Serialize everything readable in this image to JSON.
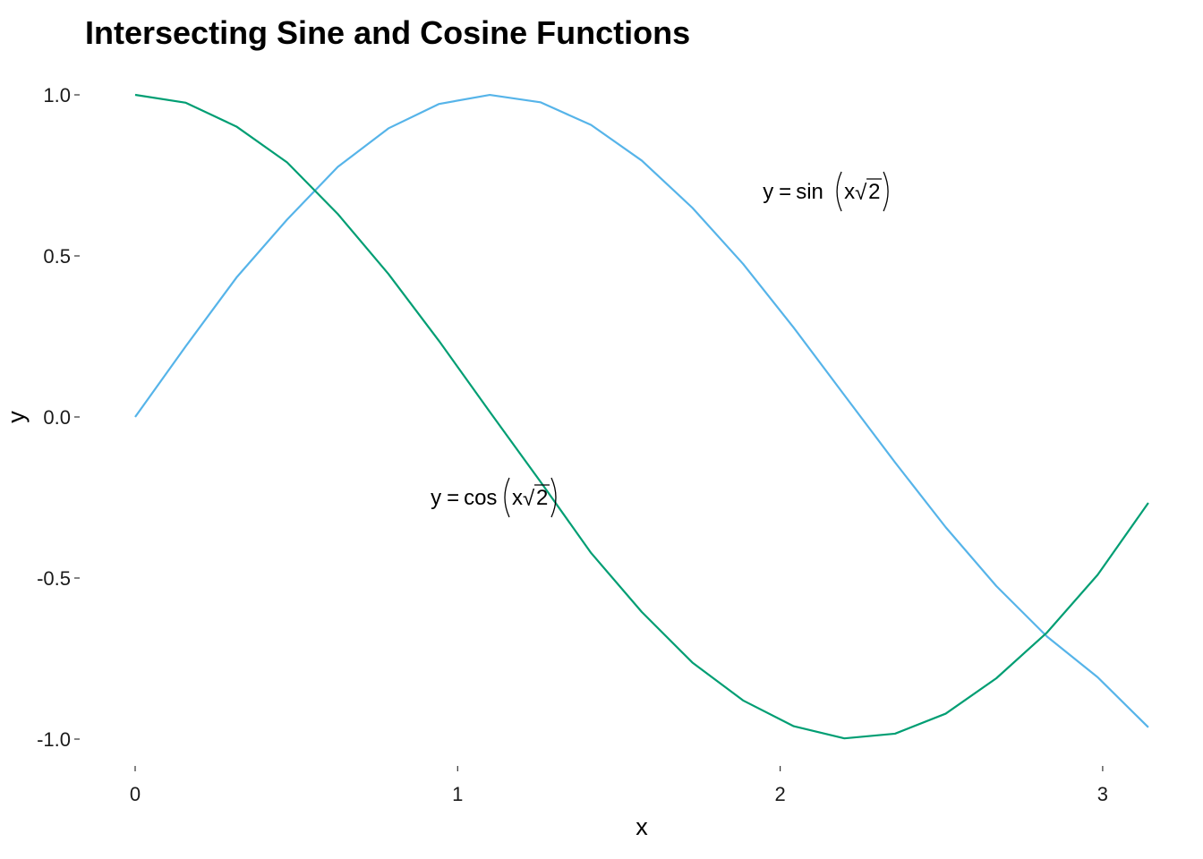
{
  "chart_data": {
    "type": "line",
    "title": "Intersecting Sine and Cosine Functions",
    "xlabel": "x",
    "ylabel": "y",
    "xlim": [
      0,
      3.1416
    ],
    "ylim": [
      -1.0,
      1.0
    ],
    "x_ticks": [
      0,
      1,
      2,
      3
    ],
    "x_tick_labels": [
      "0",
      "1",
      "2",
      "3"
    ],
    "y_ticks": [
      1.0,
      0.5,
      0.0,
      -0.5,
      -1.0
    ],
    "y_tick_labels": [
      "1.0",
      "0.5",
      "0.0",
      "-0.5",
      "-1.0"
    ],
    "grid": false,
    "x": [
      0,
      0.1571,
      0.3142,
      0.4712,
      0.6283,
      0.7854,
      0.9425,
      1.0996,
      1.2566,
      1.4137,
      1.5708,
      1.7279,
      1.885,
      2.042,
      2.1991,
      2.3562,
      2.5133,
      2.6704,
      2.8274,
      2.9845,
      3.1416
    ],
    "series": [
      {
        "id": "sin",
        "color": "#56B4E9",
        "values": [
          0.0,
          0.2198,
          0.4329,
          0.6129,
          0.7764,
          0.896,
          0.9718,
          0.9999,
          0.977,
          0.9065,
          0.796,
          0.6493,
          0.4752,
          0.2773,
          0.0677,
          -0.141,
          -0.3424,
          -0.525,
          -0.6816,
          -0.808,
          -0.9634
        ]
      },
      {
        "id": "cos",
        "color": "#009E73",
        "values": [
          1.0,
          0.9755,
          0.9015,
          0.7902,
          0.6302,
          0.444,
          0.2357,
          0.0159,
          -0.2008,
          -0.4221,
          -0.6052,
          -0.7624,
          -0.88,
          -0.96,
          -0.9977,
          -0.9831,
          -0.921,
          -0.8111,
          -0.6692,
          -0.49,
          -0.2668
        ]
      }
    ],
    "annotations": [
      {
        "id": "sin",
        "lhs": "y",
        "eq": "=",
        "fn": "sin",
        "arg": "x",
        "radical": "√",
        "radicand": "2",
        "x": 2.15,
        "y": 0.7
      },
      {
        "id": "cos",
        "lhs": "y",
        "eq": "=",
        "fn": "cos",
        "arg": "x",
        "radical": "√",
        "radicand": "2",
        "x": 1.12,
        "y": -0.25
      }
    ]
  }
}
